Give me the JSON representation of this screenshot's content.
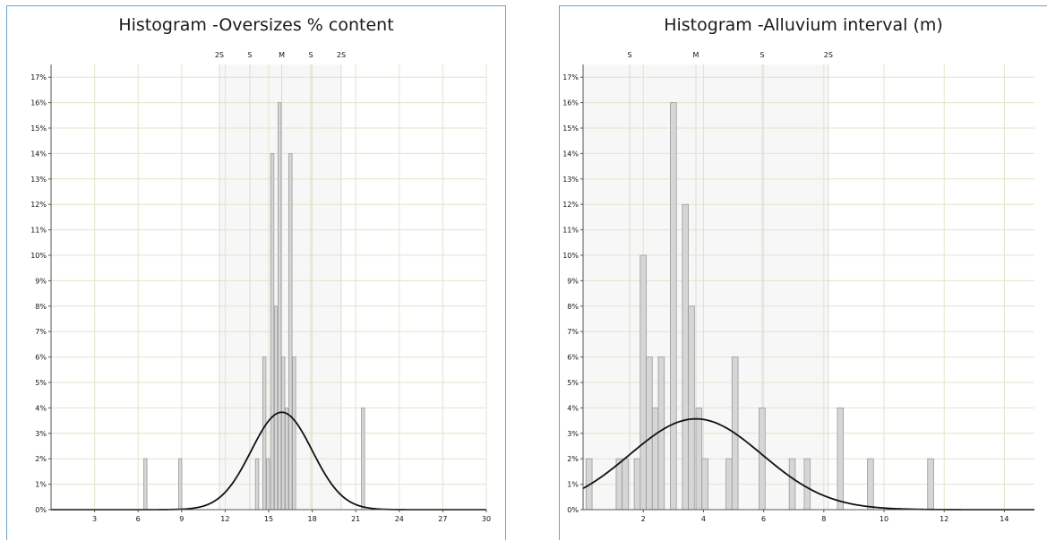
{
  "chart_data": [
    {
      "type": "bar",
      "title": "Histogram -Oversizes % content",
      "xlim": [
        0,
        30
      ],
      "ylim": [
        0,
        17.5
      ],
      "xticks": [
        3,
        6,
        9,
        12,
        15,
        18,
        21,
        24,
        27,
        30
      ],
      "xtick_labels": [
        "3",
        "6",
        "9",
        "12",
        "15",
        "18",
        "21",
        "24",
        "27",
        "30"
      ],
      "yticks": [
        0,
        1,
        2,
        3,
        4,
        5,
        6,
        7,
        8,
        9,
        10,
        11,
        12,
        13,
        14,
        15,
        16,
        17
      ],
      "ytick_labels": [
        "0%",
        "1%",
        "2%",
        "3%",
        "4%",
        "5%",
        "6%",
        "7%",
        "8%",
        "9%",
        "10%",
        "11%",
        "12%",
        "13%",
        "14%",
        "15%",
        "16%",
        "17%"
      ],
      "stat_markers": [
        {
          "label": "2S",
          "x": 11.6
        },
        {
          "label": "S",
          "x": 13.7
        },
        {
          "label": "M",
          "x": 15.9
        },
        {
          "label": "S",
          "x": 17.9
        },
        {
          "label": "2S",
          "x": 20.0
        }
      ],
      "band": [
        11.6,
        20.0
      ],
      "bar_width": 0.22,
      "bars": [
        {
          "x": 6.5,
          "value": 2
        },
        {
          "x": 8.9,
          "value": 2
        },
        {
          "x": 14.2,
          "value": 2
        },
        {
          "x": 14.7,
          "value": 6
        },
        {
          "x": 14.95,
          "value": 2
        },
        {
          "x": 15.25,
          "value": 14
        },
        {
          "x": 15.5,
          "value": 8
        },
        {
          "x": 15.75,
          "value": 16
        },
        {
          "x": 16.0,
          "value": 6
        },
        {
          "x": 16.25,
          "value": 4
        },
        {
          "x": 16.5,
          "value": 14
        },
        {
          "x": 16.75,
          "value": 6
        },
        {
          "x": 21.5,
          "value": 4
        }
      ],
      "curve": {
        "mean": 15.9,
        "sd": 2.1,
        "peak": 3.83
      }
    },
    {
      "type": "bar",
      "title": "Histogram -Alluvium interval (m)",
      "xlim": [
        0,
        15
      ],
      "ylim": [
        0,
        17.5
      ],
      "xticks": [
        2,
        4,
        6,
        8,
        10,
        12,
        14
      ],
      "xtick_labels": [
        "2",
        "4",
        "6",
        "8",
        "10",
        "12",
        "14"
      ],
      "yticks": [
        0,
        1,
        2,
        3,
        4,
        5,
        6,
        7,
        8,
        9,
        10,
        11,
        12,
        13,
        14,
        15,
        16,
        17
      ],
      "ytick_labels": [
        "0%",
        "1%",
        "2%",
        "3%",
        "4%",
        "5%",
        "6%",
        "7%",
        "8%",
        "9%",
        "10%",
        "11%",
        "12%",
        "13%",
        "14%",
        "15%",
        "16%",
        "17%"
      ],
      "stat_markers": [
        {
          "label": "S",
          "x": 1.55
        },
        {
          "label": "M",
          "x": 3.75
        },
        {
          "label": "S",
          "x": 5.95
        },
        {
          "label": "2S",
          "x": 8.15
        }
      ],
      "band": [
        0,
        8.15
      ],
      "bar_width": 0.2,
      "bars": [
        {
          "x": 0.2,
          "value": 2
        },
        {
          "x": 1.2,
          "value": 2
        },
        {
          "x": 1.4,
          "value": 2
        },
        {
          "x": 1.8,
          "value": 2
        },
        {
          "x": 2.0,
          "value": 10
        },
        {
          "x": 2.2,
          "value": 6
        },
        {
          "x": 2.4,
          "value": 4
        },
        {
          "x": 2.6,
          "value": 6
        },
        {
          "x": 3.0,
          "value": 16
        },
        {
          "x": 3.4,
          "value": 12
        },
        {
          "x": 3.6,
          "value": 8
        },
        {
          "x": 3.85,
          "value": 4
        },
        {
          "x": 4.05,
          "value": 2
        },
        {
          "x": 4.85,
          "value": 2
        },
        {
          "x": 5.05,
          "value": 6
        },
        {
          "x": 5.95,
          "value": 4
        },
        {
          "x": 6.95,
          "value": 2
        },
        {
          "x": 7.45,
          "value": 2
        },
        {
          "x": 8.55,
          "value": 4
        },
        {
          "x": 9.55,
          "value": 2
        },
        {
          "x": 11.55,
          "value": 2
        }
      ],
      "curve": {
        "mean": 3.75,
        "sd": 2.2,
        "peak": 3.57
      }
    }
  ]
}
